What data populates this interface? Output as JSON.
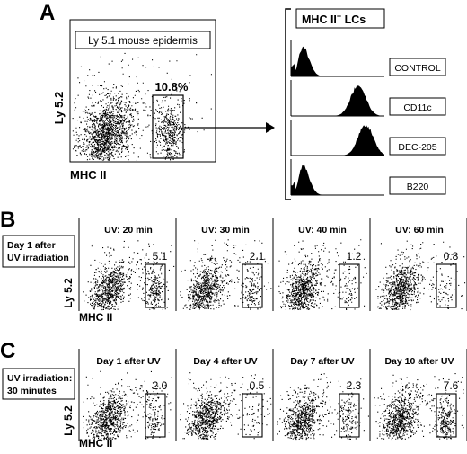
{
  "panel_a": {
    "letter": "A",
    "plot_title": "Ly 5.1 mouse epidermis",
    "percent": "10.8%",
    "y_label": "Ly 5.2",
    "x_label": "MHC II",
    "lcs_title": "MHC II",
    "lcs_sup": "+",
    "lcs_suffix": " LCs",
    "histograms": [
      {
        "label": "CONTROL",
        "peak_position": 0.12
      },
      {
        "label": "CD11c",
        "peak_position": 0.72
      },
      {
        "label": "DEC-205",
        "peak_position": 0.8
      },
      {
        "label": "B220",
        "peak_position": 0.12
      }
    ]
  },
  "panel_b": {
    "letter": "B",
    "note_line1": "Day 1 after",
    "note_line2": "UV irradiation",
    "y_label": "Ly 5.2",
    "x_label": "MHC II",
    "plots": [
      {
        "title": "UV: 20 min",
        "value": "5.1",
        "gate_density": 0.9
      },
      {
        "title": "UV: 30 min",
        "value": "2.1",
        "gate_density": 0.45
      },
      {
        "title": "UV: 40 min",
        "value": "1.2",
        "gate_density": 0.28
      },
      {
        "title": "UV: 60 min",
        "value": "0.8",
        "gate_density": 0.18
      }
    ]
  },
  "panel_c": {
    "letter": "C",
    "note_line1": "UV irradiation:",
    "note_line2": "30 minutes",
    "y_label": "Ly 5.2",
    "x_label": "MHC II",
    "plots": [
      {
        "title": "Day 1 after UV",
        "value": "2.0",
        "gate_density": 0.45
      },
      {
        "title": "Day 4 after UV",
        "value": "0.5",
        "gate_density": 0.15
      },
      {
        "title": "Day 7 after UV",
        "value": "2.3",
        "gate_density": 0.5
      },
      {
        "title": "Day 10 after UV",
        "value": "7.6",
        "gate_density": 1.0
      }
    ]
  }
}
